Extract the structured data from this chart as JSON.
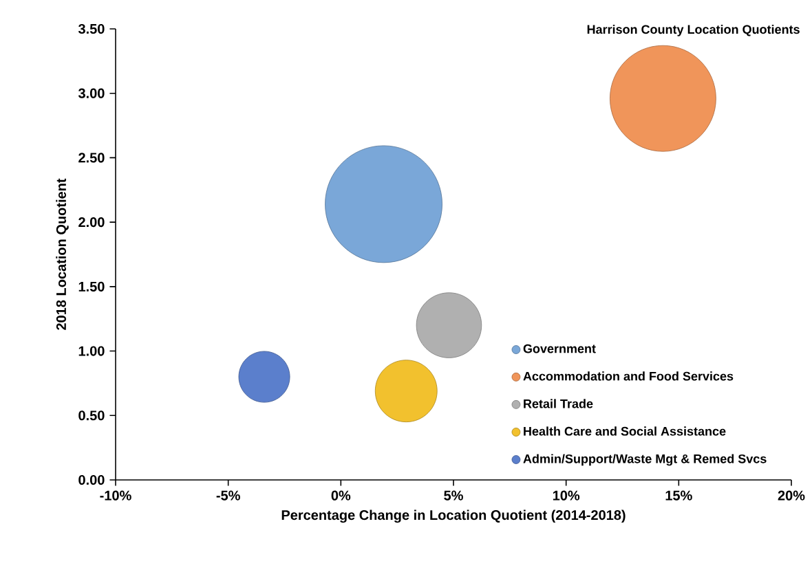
{
  "chart_data": {
    "type": "bubble",
    "title": "Harrison County Location Quotients",
    "xlabel": "Percentage Change in Location Quotient (2014-2018)",
    "ylabel": "2018 Location Quotient",
    "series": [
      {
        "name": "Government",
        "color": "#7aa7d8",
        "x": [
          1.9
        ],
        "values": [
          2.14
        ],
        "sizes": [
          1
        ]
      },
      {
        "name": "Accommodation and Food Services",
        "color": "#f0955a",
        "x": [
          14.3
        ],
        "values": [
          2.96
        ],
        "sizes": [
          0.82
        ]
      },
      {
        "name": "Retail Trade",
        "color": "#b0b0b0",
        "x": [
          4.8
        ],
        "values": [
          1.2
        ],
        "sizes": [
          0.31
        ]
      },
      {
        "name": "Health Care and Social Assistance",
        "color": "#f2c12e",
        "x": [
          2.9
        ],
        "values": [
          0.69
        ],
        "sizes": [
          0.28
        ]
      },
      {
        "name": "Admin/Support/Waste Mgt & Remed Svcs",
        "color": "#5b7fcc",
        "x": [
          -3.4
        ],
        "values": [
          0.8
        ],
        "sizes": [
          0.19
        ]
      }
    ],
    "xlim": [
      -10,
      20
    ],
    "xticks": [
      {
        "value": -10,
        "label": "-10%"
      },
      {
        "value": -5,
        "label": "-5%"
      },
      {
        "value": 0,
        "label": "0%"
      },
      {
        "value": 5,
        "label": "5%"
      },
      {
        "value": 10,
        "label": "10%"
      },
      {
        "value": 15,
        "label": "15%"
      },
      {
        "value": 20,
        "label": "20%"
      }
    ],
    "ylim": [
      0,
      3.5
    ],
    "yticks": [
      {
        "value": 0,
        "label": "0.00"
      },
      {
        "value": 0.5,
        "label": "0.50"
      },
      {
        "value": 1,
        "label": "1.00"
      },
      {
        "value": 1.5,
        "label": "1.50"
      },
      {
        "value": 2,
        "label": "2.00"
      },
      {
        "value": 2.5,
        "label": "2.50"
      },
      {
        "value": 3,
        "label": "3.00"
      },
      {
        "value": 3.5,
        "label": "3.50"
      }
    ],
    "legend": "bottom right",
    "marker": "circle"
  }
}
